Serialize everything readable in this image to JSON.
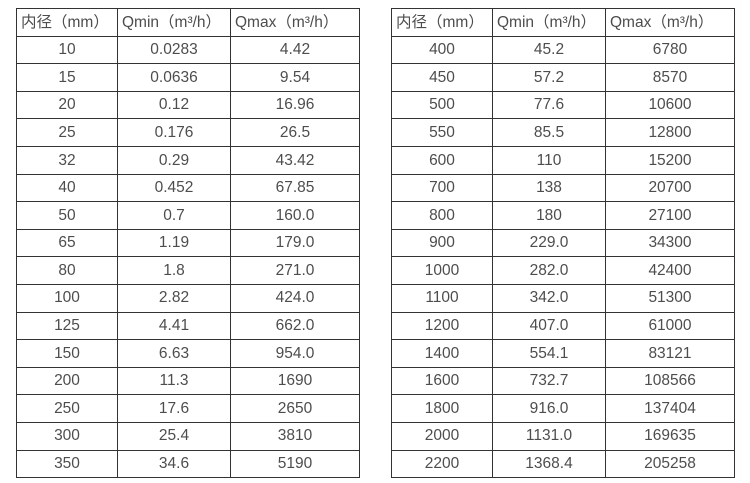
{
  "page": {
    "background_color": "#ffffff",
    "border_color": "#333333",
    "text_color": "#4d4d4d"
  },
  "tables": [
    {
      "name": "flow-range-table-small-diameters",
      "headers": [
        "内径（mm）",
        "Qmin（m³/h）",
        "Qmax（m³/h）"
      ],
      "rows": [
        [
          "10",
          "0.0283",
          "4.42"
        ],
        [
          "15",
          "0.0636",
          "9.54"
        ],
        [
          "20",
          "0.12",
          "16.96"
        ],
        [
          "25",
          "0.176",
          "26.5"
        ],
        [
          "32",
          "0.29",
          "43.42"
        ],
        [
          "40",
          "0.452",
          "67.85"
        ],
        [
          "50",
          "0.7",
          "160.0"
        ],
        [
          "65",
          "1.19",
          "179.0"
        ],
        [
          "80",
          "1.8",
          "271.0"
        ],
        [
          "100",
          "2.82",
          "424.0"
        ],
        [
          "125",
          "4.41",
          "662.0"
        ],
        [
          "150",
          "6.63",
          "954.0"
        ],
        [
          "200",
          "11.3",
          "1690"
        ],
        [
          "250",
          "17.6",
          "2650"
        ],
        [
          "300",
          "25.4",
          "3810"
        ],
        [
          "350",
          "34.6",
          "5190"
        ]
      ]
    },
    {
      "name": "flow-range-table-large-diameters",
      "headers": [
        "内径（mm）",
        "Qmin（m³/h）",
        "Qmax（m³/h）"
      ],
      "rows": [
        [
          "400",
          "45.2",
          "6780"
        ],
        [
          "450",
          "57.2",
          "8570"
        ],
        [
          "500",
          "77.6",
          "10600"
        ],
        [
          "550",
          "85.5",
          "12800"
        ],
        [
          "600",
          "110",
          "15200"
        ],
        [
          "700",
          "138",
          "20700"
        ],
        [
          "800",
          "180",
          "27100"
        ],
        [
          "900",
          "229.0",
          "34300"
        ],
        [
          "1000",
          "282.0",
          "42400"
        ],
        [
          "1100",
          "342.0",
          "51300"
        ],
        [
          "1200",
          "407.0",
          "61000"
        ],
        [
          "1400",
          "554.1",
          "83121"
        ],
        [
          "1600",
          "732.7",
          "108566"
        ],
        [
          "1800",
          "916.0",
          "137404"
        ],
        [
          "2000",
          "1131.0",
          "169635"
        ],
        [
          "2200",
          "1368.4",
          "205258"
        ]
      ]
    }
  ]
}
